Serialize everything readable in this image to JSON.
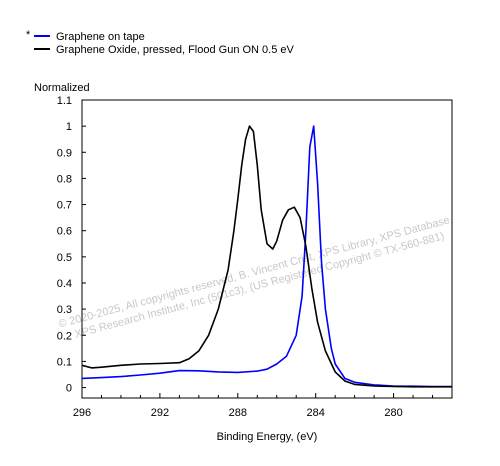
{
  "legend": {
    "marker": "*",
    "items": [
      {
        "label": "Graphene on tape",
        "color": "#0000ff"
      },
      {
        "label": "Graphene Oxide, pressed, Flood Gun ON 0.5 eV",
        "color": "#000000"
      }
    ]
  },
  "watermark": {
    "line1": "© 2020-2025,  All copyrights reserved,  B. Vincent Crist,  XPS Library, XPS Database,",
    "line2": "XPS Research Institute, Inc (501c3),  (US Registered Copyright © TX-560-881)"
  },
  "chart_data": {
    "type": "line",
    "title": "",
    "xlabel": "Binding Energy, (eV)",
    "ylabel": "Normalized",
    "xlim": [
      296,
      277
    ],
    "x_reversed": true,
    "ylim": [
      -0.04,
      1.1
    ],
    "xticks": [
      296,
      292,
      288,
      284,
      280
    ],
    "xtick_labels": [
      "296",
      "292",
      "288",
      "284",
      "280"
    ],
    "yticks": [
      0,
      0.1,
      0.2,
      0.3,
      0.4,
      0.5,
      0.6,
      0.7,
      0.8,
      0.9,
      1,
      1.1
    ],
    "ytick_labels": [
      "0",
      "0.1",
      "0.2",
      "0.3",
      "0.4",
      "0.5",
      "0.6",
      "0.7",
      "0.8",
      "0.9",
      "1",
      "1.1"
    ],
    "grid": false,
    "legend_position": "top-left",
    "series": [
      {
        "name": "Graphene on tape",
        "color": "#0000ff",
        "x": [
          296,
          295,
          294,
          293,
          292,
          291,
          290,
          289,
          288,
          287,
          286.5,
          286,
          285.5,
          285,
          284.7,
          284.5,
          284.3,
          284.1,
          283.9,
          283.7,
          283.5,
          283.2,
          283,
          282.5,
          282,
          281,
          280,
          279,
          278,
          277
        ],
        "y": [
          0.035,
          0.038,
          0.042,
          0.048,
          0.055,
          0.065,
          0.064,
          0.06,
          0.058,
          0.063,
          0.07,
          0.09,
          0.12,
          0.2,
          0.35,
          0.6,
          0.92,
          1.0,
          0.78,
          0.48,
          0.3,
          0.15,
          0.09,
          0.035,
          0.02,
          0.01,
          0.006,
          0.005,
          0.004,
          0.004
        ]
      },
      {
        "name": "Graphene Oxide, pressed, Flood Gun ON 0.5 eV",
        "color": "#000000",
        "x": [
          296,
          295.5,
          295,
          294,
          293,
          292,
          291,
          290.5,
          290,
          289.5,
          289,
          288.5,
          288.2,
          288,
          287.8,
          287.6,
          287.4,
          287.2,
          287.0,
          286.8,
          286.5,
          286.2,
          286,
          285.7,
          285.4,
          285.1,
          284.8,
          284.5,
          284.2,
          283.9,
          283.5,
          283,
          282.5,
          282,
          281,
          280,
          279,
          278,
          277
        ],
        "y": [
          0.085,
          0.075,
          0.078,
          0.085,
          0.09,
          0.092,
          0.095,
          0.11,
          0.14,
          0.2,
          0.3,
          0.45,
          0.6,
          0.72,
          0.85,
          0.95,
          1.0,
          0.98,
          0.85,
          0.68,
          0.55,
          0.53,
          0.56,
          0.64,
          0.68,
          0.69,
          0.65,
          0.54,
          0.38,
          0.25,
          0.14,
          0.06,
          0.025,
          0.012,
          0.006,
          0.004,
          0.003,
          0.003,
          0.003
        ]
      }
    ]
  }
}
